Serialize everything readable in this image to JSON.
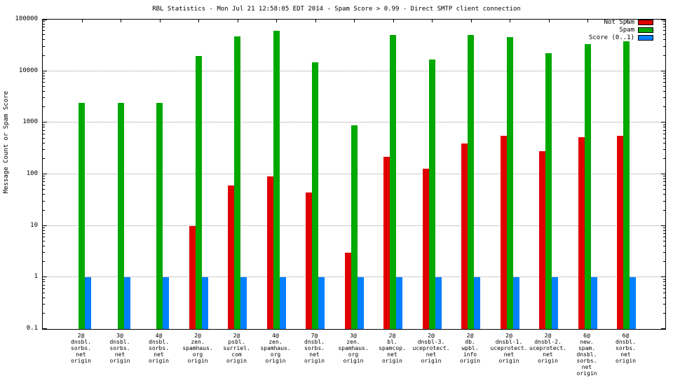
{
  "chart_data": {
    "type": "bar",
    "title": "RBL Statistics - Mon Jul 21 12:58:05 EDT 2014 - Spam Score > 0.99 - Direct SMTP client connection",
    "ylabel": "Message Count or Spam Score",
    "xlabel": "",
    "yscale": "log",
    "ylim": [
      0.1,
      100000
    ],
    "yticks": [
      0.1,
      1,
      10,
      100,
      1000,
      10000,
      100000
    ],
    "grid": true,
    "legend_position": "top-right",
    "categories": [
      [
        "2@",
        "dnsbl.",
        "sorbs.",
        "net",
        "origin"
      ],
      [
        "3@",
        "dnsbl.",
        "sorbs.",
        "net",
        "origin"
      ],
      [
        "4@",
        "dnsbl.",
        "sorbs.",
        "net",
        "origin"
      ],
      [
        "2@",
        "zen.",
        "spamhaus.",
        "org",
        "origin"
      ],
      [
        "2@",
        "psbl.",
        "surriel.",
        "com",
        "origin"
      ],
      [
        "4@",
        "zen.",
        "spamhaus.",
        "org",
        "origin"
      ],
      [
        "7@",
        "dnsbl.",
        "sorbs.",
        "net",
        "origin"
      ],
      [
        "3@",
        "zen.",
        "spamhaus.",
        "org",
        "origin"
      ],
      [
        "2@",
        "bl.",
        "spamcop.",
        "net",
        "origin"
      ],
      [
        "2@",
        "dnsbl-3.",
        "uceprotect.",
        "net",
        "origin"
      ],
      [
        "2@",
        "db.",
        "wpbl.",
        "info",
        "origin"
      ],
      [
        "2@",
        "dnsbl-1.",
        "uceprotect.",
        "net",
        "origin"
      ],
      [
        "2@",
        "dnsbl-2.",
        "uceprotect.",
        "net",
        "origin"
      ],
      [
        "6@",
        "new.",
        "spam.",
        "dnsbl.",
        "sorbs.",
        "net",
        "origin"
      ],
      [
        "6@",
        "dnsbl.",
        "sorbs.",
        "net",
        "origin"
      ]
    ],
    "series": [
      {
        "name": "Not Spam",
        "color": "#e00000",
        "values": [
          null,
          null,
          null,
          10,
          60,
          90,
          45,
          3,
          220,
          130,
          400,
          550,
          280,
          520,
          550
        ]
      },
      {
        "name": "Spam",
        "color": "#00a800",
        "values": [
          2400,
          2400,
          2400,
          20000,
          47000,
          60000,
          15000,
          900,
          50000,
          17000,
          50000,
          46000,
          22000,
          33000,
          38000
        ]
      },
      {
        "name": "Score (0..1)",
        "color": "#0080ff",
        "values": [
          1,
          1,
          1,
          1,
          1,
          1,
          1,
          1,
          1,
          1,
          1,
          1,
          1,
          1,
          1
        ]
      }
    ]
  }
}
